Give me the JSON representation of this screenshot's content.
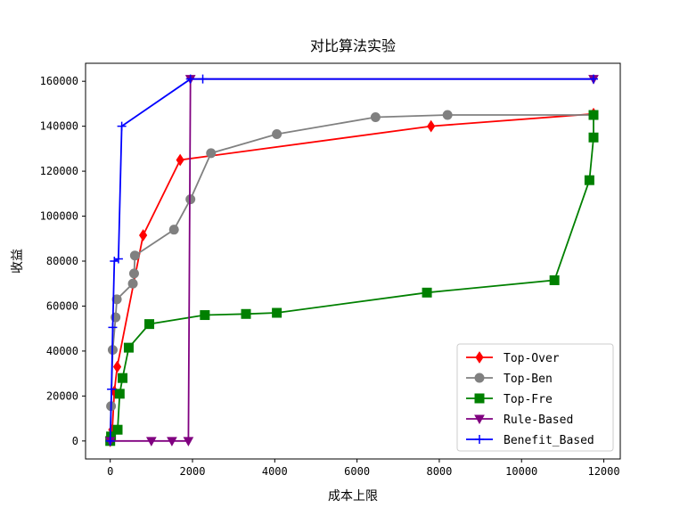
{
  "chart_data": {
    "type": "line",
    "title": "对比算法实验",
    "xlabel": "成本上限",
    "ylabel": "收益",
    "xlim": [
      -600,
      12400
    ],
    "ylim": [
      -8000,
      168000
    ],
    "x_ticks": [
      0,
      2000,
      4000,
      6000,
      8000,
      10000,
      12000
    ],
    "y_ticks": [
      0,
      20000,
      40000,
      60000,
      80000,
      100000,
      120000,
      140000,
      160000
    ],
    "grid": false,
    "legend_position": "lower right",
    "series": [
      {
        "name": "Top-Over",
        "color": "#ff0000",
        "marker": "diamond",
        "points": [
          [
            0,
            0
          ],
          [
            50,
            5000
          ],
          [
            100,
            22000
          ],
          [
            170,
            33000
          ],
          [
            800,
            91500
          ],
          [
            1700,
            125000
          ],
          [
            7800,
            140000
          ],
          [
            11750,
            145500
          ]
        ]
      },
      {
        "name": "Top-Ben",
        "color": "#808080",
        "marker": "circle",
        "points": [
          [
            0,
            0
          ],
          [
            20,
            15500
          ],
          [
            60,
            40500
          ],
          [
            130,
            55000
          ],
          [
            160,
            63000
          ],
          [
            550,
            70000
          ],
          [
            580,
            74500
          ],
          [
            600,
            82500
          ],
          [
            1550,
            94000
          ],
          [
            1950,
            107500
          ],
          [
            2450,
            128000
          ],
          [
            4050,
            136500
          ],
          [
            6450,
            144000
          ],
          [
            8200,
            145000
          ],
          [
            11750,
            145000
          ]
        ]
      },
      {
        "name": "Top-Fre",
        "color": "#008000",
        "marker": "square",
        "points": [
          [
            0,
            0
          ],
          [
            20,
            2000
          ],
          [
            180,
            5000
          ],
          [
            230,
            21000
          ],
          [
            300,
            28000
          ],
          [
            450,
            41500
          ],
          [
            950,
            52000
          ],
          [
            2300,
            56000
          ],
          [
            3300,
            56500
          ],
          [
            4050,
            57000
          ],
          [
            7700,
            66000
          ],
          [
            10800,
            71500
          ],
          [
            11650,
            116000
          ],
          [
            11750,
            135000
          ],
          [
            11750,
            145000
          ]
        ]
      },
      {
        "name": "Rule-Based",
        "color": "#800080",
        "marker": "triangle-down",
        "points": [
          [
            0,
            0
          ],
          [
            1000,
            0
          ],
          [
            1500,
            0
          ],
          [
            1900,
            0
          ],
          [
            1950,
            161000
          ],
          [
            11750,
            161000
          ]
        ]
      },
      {
        "name": "Benefit_Based",
        "color": "#0000ff",
        "marker": "plus",
        "points": [
          [
            0,
            0
          ],
          [
            30,
            23000
          ],
          [
            60,
            50500
          ],
          [
            100,
            80000
          ],
          [
            200,
            81000
          ],
          [
            280,
            140000
          ],
          [
            1950,
            161000
          ],
          [
            2250,
            161000
          ],
          [
            11750,
            161000
          ]
        ]
      }
    ]
  }
}
